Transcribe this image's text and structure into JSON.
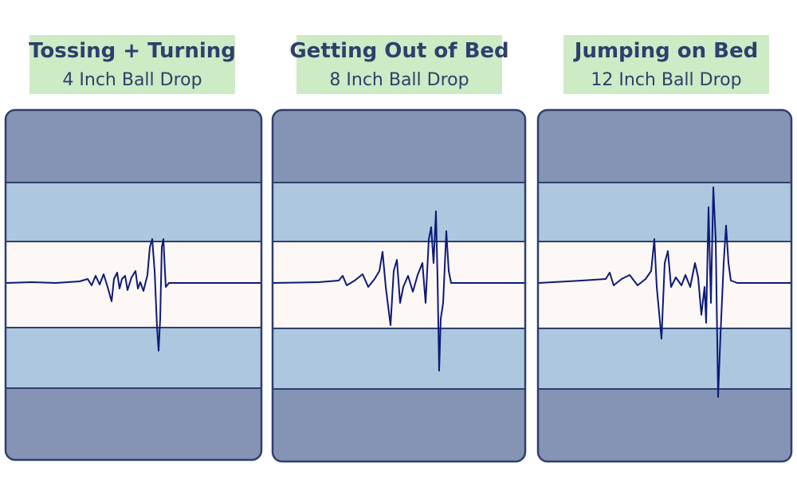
{
  "panels": [
    {
      "title": "Tossing + Turning",
      "subtitle": "4 Inch Ball Drop"
    },
    {
      "title": "Getting Out of Bed",
      "subtitle": "8 Inch Ball Drop"
    },
    {
      "title": "Jumping on Bed",
      "subtitle": "12 Inch Ball Drop"
    }
  ]
}
